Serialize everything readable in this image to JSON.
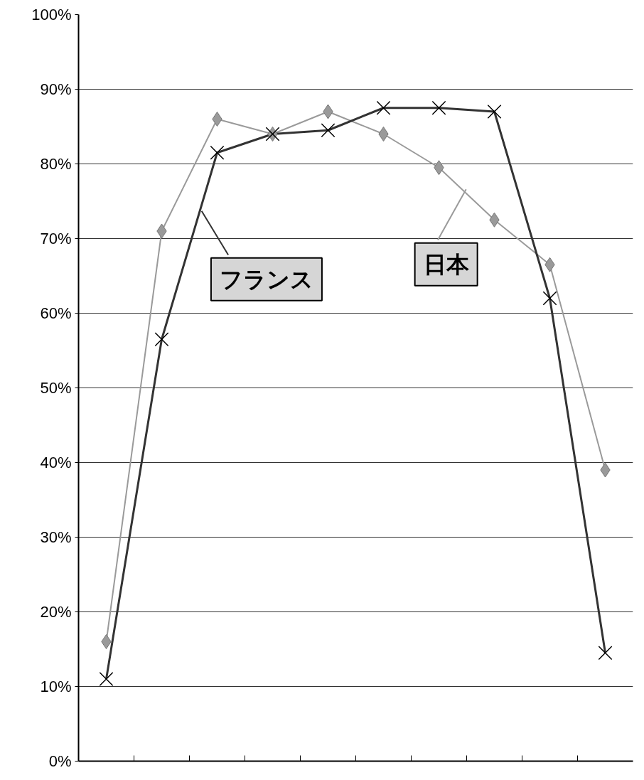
{
  "chart_data": {
    "type": "line",
    "categories": [
      null,
      null,
      null,
      null,
      null,
      null,
      null,
      null,
      null,
      null
    ],
    "series": [
      {
        "name": "日本",
        "color": "#9a9a9a",
        "marker": "diamond",
        "values": [
          16,
          71,
          86,
          84,
          87,
          84,
          79.5,
          72.5,
          66.5,
          39
        ]
      },
      {
        "name": "フランス",
        "color": "#333333",
        "marker": "cross",
        "values": [
          11,
          56.5,
          81.5,
          84,
          84.5,
          87.5,
          87.5,
          87,
          62,
          14.5
        ]
      }
    ],
    "ylim": [
      0,
      100
    ],
    "yticks": [
      {
        "value": 0,
        "label": "0%"
      },
      {
        "value": 10,
        "label": "10%"
      },
      {
        "value": 20,
        "label": "20%"
      },
      {
        "value": 30,
        "label": "30%"
      },
      {
        "value": 40,
        "label": "40%"
      },
      {
        "value": 50,
        "label": "50%"
      },
      {
        "value": 60,
        "label": "60%"
      },
      {
        "value": 70,
        "label": "70%"
      },
      {
        "value": 80,
        "label": "80%"
      },
      {
        "value": 90,
        "label": "90%"
      },
      {
        "value": 100,
        "label": "100%"
      }
    ],
    "grid": "y",
    "legend": "center",
    "line_style": "solid",
    "tick_labels": "y"
  }
}
